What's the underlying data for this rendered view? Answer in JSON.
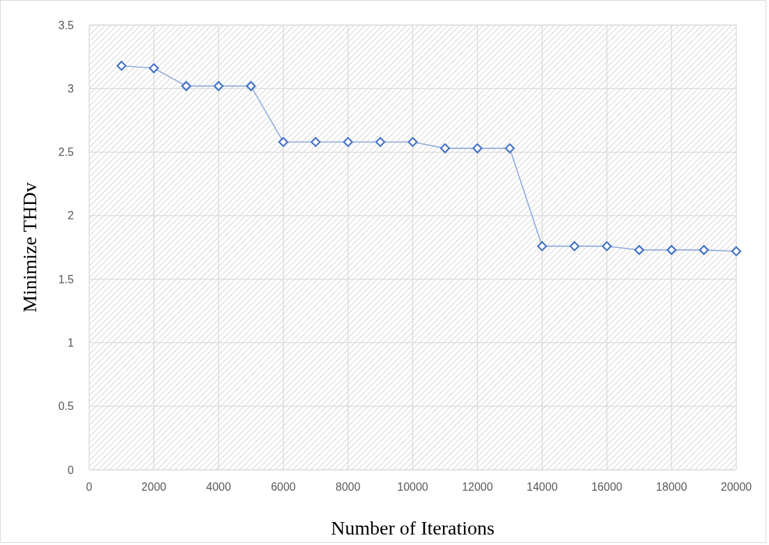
{
  "chart_data": {
    "type": "line",
    "xlabel": "Number of Iterations",
    "ylabel": "Minimize THDv",
    "x": [
      1000,
      2000,
      3000,
      4000,
      5000,
      6000,
      7000,
      8000,
      9000,
      10000,
      11000,
      12000,
      13000,
      14000,
      15000,
      16000,
      17000,
      18000,
      19000,
      20000
    ],
    "series": [
      {
        "color": "#4472c4",
        "values": [
          3.18,
          3.16,
          3.02,
          3.02,
          3.02,
          2.58,
          2.58,
          2.58,
          2.58,
          2.58,
          2.53,
          2.53,
          2.53,
          1.76,
          1.76,
          1.76,
          1.73,
          1.73,
          1.73,
          1.72
        ]
      }
    ],
    "xlim": [
      0,
      20000
    ],
    "xticks": [
      0,
      2000,
      4000,
      6000,
      8000,
      10000,
      12000,
      14000,
      16000,
      18000,
      20000
    ],
    "ylim": [
      0,
      3.5
    ],
    "yticks": [
      0,
      0.5,
      1,
      1.5,
      2,
      2.5,
      3,
      3.5
    ],
    "grid": true,
    "marker": "diamond",
    "line_style": "solid"
  }
}
